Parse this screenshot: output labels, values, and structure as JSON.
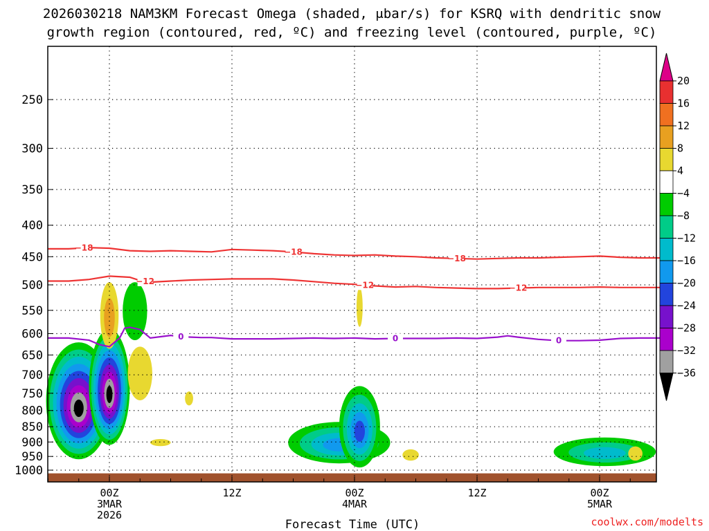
{
  "chart_data": {
    "type": "time-height",
    "title_line1": "2026030218 NAM3KM Forecast Omega (shaded, μbar/s) for KSRQ with dendritic snow",
    "title_line2": "growth region (contoured, red, ºC) and freezing level (contoured, purple, ºC)",
    "xlabel": "Forecast Time (UTC)",
    "credit": "coolwx.com/modelts",
    "x_range_hours": [
      -6,
      54
    ],
    "x_ticks": [
      {
        "hour": 0,
        "lines": [
          "00Z",
          "3MAR",
          "2026"
        ]
      },
      {
        "hour": 12,
        "lines": [
          "12Z"
        ]
      },
      {
        "hour": 24,
        "lines": [
          "00Z",
          "4MAR"
        ]
      },
      {
        "hour": 36,
        "lines": [
          "12Z"
        ]
      },
      {
        "hour": 48,
        "lines": [
          "00Z",
          "5MAR"
        ]
      }
    ],
    "y_range_hpa": [
      1025,
      200
    ],
    "y_ticks": [
      250,
      300,
      350,
      400,
      450,
      500,
      550,
      600,
      650,
      700,
      750,
      800,
      850,
      900,
      950,
      1000
    ],
    "colorbar": {
      "tick_labels": [
        "20",
        "16",
        "12",
        "8",
        "4",
        "−4",
        "−8",
        "−12",
        "−16",
        "−20",
        "−24",
        "−28",
        "−32",
        "−36"
      ],
      "colors": [
        "#dd0088",
        "#e83030",
        "#f07020",
        "#e8a020",
        "#e8d830",
        "#ffffff",
        "#00cc00",
        "#00cc88",
        "#00bbcc",
        "#1199ee",
        "#2244dd",
        "#7711cc",
        "#aa00cc",
        "#a0a0a0",
        "#000000"
      ]
    },
    "contours": [
      {
        "name": "-18C isotherm",
        "value": -18,
        "color": "#ee3333",
        "label": "−18",
        "points": [
          [
            -6,
            437
          ],
          [
            -4,
            437
          ],
          [
            -2,
            435
          ],
          [
            0,
            436
          ],
          [
            2,
            440
          ],
          [
            4,
            441
          ],
          [
            6,
            440
          ],
          [
            8,
            441
          ],
          [
            10,
            442
          ],
          [
            12,
            438
          ],
          [
            14,
            439
          ],
          [
            16,
            440
          ],
          [
            18,
            442
          ],
          [
            20,
            445
          ],
          [
            22,
            447
          ],
          [
            24,
            448
          ],
          [
            26,
            447
          ],
          [
            28,
            449
          ],
          [
            30,
            450
          ],
          [
            32,
            452
          ],
          [
            34,
            453
          ],
          [
            36,
            454
          ],
          [
            38,
            453
          ],
          [
            40,
            452
          ],
          [
            42,
            452
          ],
          [
            44,
            451
          ],
          [
            46,
            450
          ],
          [
            48,
            449
          ],
          [
            50,
            451
          ],
          [
            52,
            452
          ],
          [
            54,
            452
          ]
        ],
        "label_hours": [
          -2.5,
          18,
          34
        ]
      },
      {
        "name": "-12C isotherm",
        "value": -12,
        "color": "#ee3333",
        "label": "−12",
        "points": [
          [
            -6,
            493
          ],
          [
            -4,
            493
          ],
          [
            -2,
            490
          ],
          [
            0,
            484
          ],
          [
            2,
            486
          ],
          [
            3,
            492
          ],
          [
            4,
            495
          ],
          [
            6,
            493
          ],
          [
            8,
            491
          ],
          [
            10,
            490
          ],
          [
            12,
            489
          ],
          [
            14,
            489
          ],
          [
            16,
            489
          ],
          [
            18,
            491
          ],
          [
            20,
            494
          ],
          [
            22,
            497
          ],
          [
            24,
            499
          ],
          [
            26,
            502
          ],
          [
            28,
            504
          ],
          [
            30,
            503
          ],
          [
            32,
            505
          ],
          [
            34,
            506
          ],
          [
            36,
            507
          ],
          [
            38,
            507
          ],
          [
            40,
            506
          ],
          [
            42,
            505
          ],
          [
            44,
            505
          ],
          [
            46,
            505
          ],
          [
            48,
            504
          ],
          [
            50,
            505
          ],
          [
            52,
            505
          ],
          [
            54,
            505
          ]
        ],
        "label_hours": [
          3.5,
          25,
          40
        ]
      },
      {
        "name": "freezing level",
        "value": 0,
        "color": "#9911cc",
        "label": "0",
        "points": [
          [
            -6,
            610
          ],
          [
            -4,
            610
          ],
          [
            -2,
            615
          ],
          [
            -1,
            625
          ],
          [
            0,
            630
          ],
          [
            1,
            610
          ],
          [
            1.5,
            588
          ],
          [
            2,
            586
          ],
          [
            3,
            591
          ],
          [
            4,
            610
          ],
          [
            5,
            607
          ],
          [
            6,
            604
          ],
          [
            7,
            607
          ],
          [
            8,
            608
          ],
          [
            9,
            609
          ],
          [
            10,
            609
          ],
          [
            12,
            612
          ],
          [
            14,
            612
          ],
          [
            16,
            612
          ],
          [
            18,
            611
          ],
          [
            20,
            610
          ],
          [
            22,
            611
          ],
          [
            24,
            610
          ],
          [
            26,
            612
          ],
          [
            28,
            611
          ],
          [
            30,
            611
          ],
          [
            32,
            611
          ],
          [
            34,
            610
          ],
          [
            36,
            611
          ],
          [
            38,
            608
          ],
          [
            39,
            605
          ],
          [
            40,
            608
          ],
          [
            42,
            613
          ],
          [
            44,
            616
          ],
          [
            46,
            616
          ],
          [
            48,
            615
          ],
          [
            50,
            611
          ],
          [
            52,
            610
          ],
          [
            54,
            610
          ]
        ],
        "label_hours": [
          7,
          28,
          44
        ]
      }
    ],
    "shaded_regions": [
      {
        "name": "strong upward motion column 1",
        "hour": -3,
        "center_hpa": 790,
        "half_width_h": 3.2,
        "half_height_hpa": 170,
        "levels": [
          "#00cc00",
          "#00cc88",
          "#00bbcc",
          "#1199ee",
          "#2244dd",
          "#7711cc",
          "#aa00cc",
          "#a0a0a0",
          "#000000"
        ]
      },
      {
        "name": "strong upward motion column 2",
        "hour": 0,
        "center_hpa": 750,
        "half_width_h": 2.0,
        "half_height_hpa": 160,
        "levels": [
          "#00cc00",
          "#00cc88",
          "#00bbcc",
          "#1199ee",
          "#2244dd",
          "#7711cc",
          "#aa00cc",
          "#a0a0a0",
          "#000000"
        ]
      },
      {
        "name": "upward motion day 2",
        "hour": 22.5,
        "center_hpa": 905,
        "half_width_h": 5.0,
        "half_height_hpa": 70,
        "levels": [
          "#00cc00",
          "#00cc88",
          "#00bbcc",
          "#1199ee"
        ]
      },
      {
        "name": "upward motion day 2 b",
        "hour": 24.5,
        "center_hpa": 860,
        "half_width_h": 2.0,
        "half_height_hpa": 130,
        "levels": [
          "#00cc00",
          "#00cc88",
          "#00bbcc",
          "#1199ee",
          "#2244dd"
        ]
      },
      {
        "name": "upward motion day 3",
        "hour": 48.5,
        "center_hpa": 935,
        "half_width_h": 5.0,
        "half_height_hpa": 50,
        "levels": [
          "#00cc00",
          "#00cc88",
          "#00bbcc"
        ]
      },
      {
        "name": "upward motion mid-level",
        "hour": 2.5,
        "center_hpa": 555,
        "half_width_h": 1.2,
        "half_height_hpa": 60,
        "levels": [
          "#00cc00"
        ]
      },
      {
        "name": "sinking motion",
        "hour": 0,
        "center_hpa": 565,
        "half_width_h": 0.9,
        "half_height_hpa": 70,
        "levels": [
          "#e8d830",
          "#e8a020"
        ]
      },
      {
        "name": "sinking motion",
        "hour": 3,
        "center_hpa": 700,
        "half_width_h": 1.2,
        "half_height_hpa": 70,
        "levels": [
          "#e8d830"
        ]
      },
      {
        "name": "sinking motion",
        "hour": 5,
        "center_hpa": 902,
        "half_width_h": 1.0,
        "half_height_hpa": 12,
        "levels": [
          "#e8d830"
        ]
      },
      {
        "name": "sinking motion",
        "hour": 7.8,
        "center_hpa": 765,
        "half_width_h": 0.4,
        "half_height_hpa": 20,
        "levels": [
          "#e8d830"
        ]
      },
      {
        "name": "sinking motion",
        "hour": 24.5,
        "center_hpa": 545,
        "half_width_h": 0.3,
        "half_height_hpa": 40,
        "levels": [
          "#e8d830"
        ]
      },
      {
        "name": "sinking motion",
        "hour": 29.5,
        "center_hpa": 945,
        "half_width_h": 0.8,
        "half_height_hpa": 20,
        "levels": [
          "#e8d830"
        ]
      },
      {
        "name": "sinking motion",
        "hour": 51.5,
        "center_hpa": 940,
        "half_width_h": 0.7,
        "half_height_hpa": 25,
        "levels": [
          "#e8d830"
        ]
      }
    ],
    "ground_color": "#a0522d"
  }
}
